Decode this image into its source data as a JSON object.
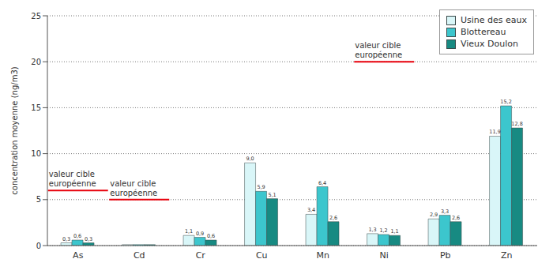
{
  "chart_data": {
    "type": "bar",
    "y_label": "concentration moyenne (ng/m3)",
    "categories": [
      "As",
      "Cd",
      "Cr",
      "Cu",
      "Mn",
      "Ni",
      "Pb",
      "Zn"
    ],
    "series": [
      {
        "name": "Usine des eaux",
        "color": "#d9f6f8",
        "values": [
          0.3,
          0.1,
          1.1,
          9.0,
          3.4,
          1.3,
          2.9,
          11.9
        ],
        "value_labels": [
          "0,3",
          null,
          "1,1",
          "9,0",
          "3,4",
          "1,3",
          "2,9",
          "11,9"
        ]
      },
      {
        "name": "Blottereau",
        "color": "#3cc6cd",
        "values": [
          0.6,
          0.1,
          0.9,
          5.9,
          6.4,
          1.2,
          3.3,
          15.2
        ],
        "value_labels": [
          "0,6",
          null,
          "0,9",
          "5,9",
          "6,4",
          "1,2",
          "3,3",
          "15,2"
        ]
      },
      {
        "name": "Vieux Doulon",
        "color": "#178a82",
        "values": [
          0.3,
          0.1,
          0.6,
          5.1,
          2.6,
          1.1,
          2.6,
          12.8
        ],
        "value_labels": [
          "0,3",
          null,
          "0,6",
          "5,1",
          "2,6",
          "1,1",
          "2,6",
          "12,8"
        ]
      }
    ],
    "ylim": [
      0,
      25
    ],
    "yticks": [
      0,
      5,
      10,
      15,
      20,
      25
    ],
    "grid": true,
    "legend": "upper right",
    "data_labels": true,
    "annotations": [
      {
        "category": "As",
        "value": 6,
        "label": "valeur cible européenne",
        "color": "#e8000b"
      },
      {
        "category": "Cd",
        "value": 5,
        "label": "valeur cible européenne",
        "color": "#e8000b"
      },
      {
        "category": "Ni",
        "value": 20,
        "label": "valeur cible européenne",
        "color": "#e8000b"
      }
    ]
  }
}
